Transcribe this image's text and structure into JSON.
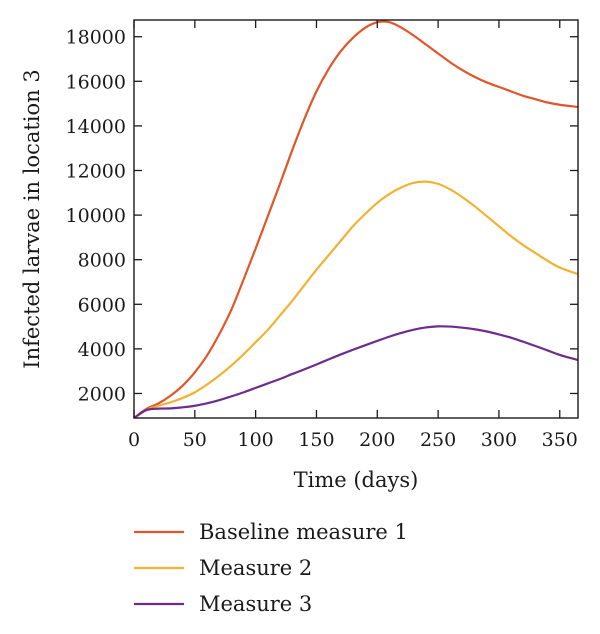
{
  "chart_data": {
    "type": "line",
    "xlabel": "Time (days)",
    "ylabel": "Infected larvae in location 3",
    "xlim": [
      0,
      365
    ],
    "ylim": [
      900,
      18750
    ],
    "xticks": [
      0,
      50,
      100,
      150,
      200,
      250,
      300,
      350
    ],
    "yticks": [
      2000,
      4000,
      6000,
      8000,
      10000,
      12000,
      14000,
      16000,
      18000
    ],
    "grid": false,
    "legend": "below",
    "series": [
      {
        "name": "Baseline measure 1",
        "color": "#e0562a",
        "x": [
          0,
          10,
          20,
          30,
          40,
          50,
          60,
          70,
          80,
          90,
          100,
          110,
          120,
          130,
          140,
          150,
          160,
          170,
          180,
          190,
          200,
          210,
          220,
          230,
          240,
          250,
          260,
          270,
          280,
          290,
          300,
          310,
          320,
          330,
          340,
          350,
          365
        ],
        "y": [
          900,
          1300,
          1550,
          1900,
          2350,
          2950,
          3700,
          4650,
          5750,
          7100,
          8500,
          9950,
          11400,
          12900,
          14300,
          15550,
          16550,
          17350,
          17950,
          18400,
          18650,
          18650,
          18400,
          18050,
          17650,
          17250,
          16850,
          16500,
          16200,
          15950,
          15750,
          15550,
          15350,
          15200,
          15050,
          14950,
          14850
        ]
      },
      {
        "name": "Measure 2",
        "color": "#f1b232",
        "x": [
          0,
          10,
          20,
          30,
          40,
          50,
          60,
          70,
          80,
          90,
          100,
          110,
          120,
          130,
          140,
          150,
          160,
          170,
          180,
          190,
          200,
          210,
          220,
          230,
          240,
          250,
          260,
          270,
          280,
          290,
          300,
          310,
          320,
          330,
          340,
          350,
          365
        ],
        "y": [
          900,
          1250,
          1450,
          1600,
          1800,
          2050,
          2400,
          2800,
          3250,
          3750,
          4300,
          4850,
          5500,
          6150,
          6850,
          7550,
          8200,
          8850,
          9500,
          10050,
          10550,
          10950,
          11250,
          11450,
          11500,
          11400,
          11150,
          10800,
          10400,
          9950,
          9500,
          9050,
          8650,
          8300,
          7950,
          7650,
          7350
        ]
      },
      {
        "name": "Measure 3",
        "color": "#6e2c8c",
        "x": [
          0,
          10,
          20,
          30,
          40,
          50,
          60,
          70,
          80,
          90,
          100,
          110,
          120,
          130,
          140,
          150,
          160,
          170,
          180,
          190,
          200,
          210,
          220,
          230,
          240,
          250,
          260,
          270,
          280,
          290,
          300,
          310,
          320,
          330,
          340,
          350,
          365
        ],
        "y": [
          900,
          1250,
          1320,
          1330,
          1380,
          1450,
          1560,
          1700,
          1870,
          2050,
          2250,
          2450,
          2650,
          2870,
          3080,
          3300,
          3530,
          3750,
          3960,
          4160,
          4360,
          4550,
          4720,
          4860,
          4960,
          5010,
          5000,
          4950,
          4880,
          4780,
          4650,
          4500,
          4320,
          4130,
          3930,
          3730,
          3500
        ]
      }
    ]
  }
}
